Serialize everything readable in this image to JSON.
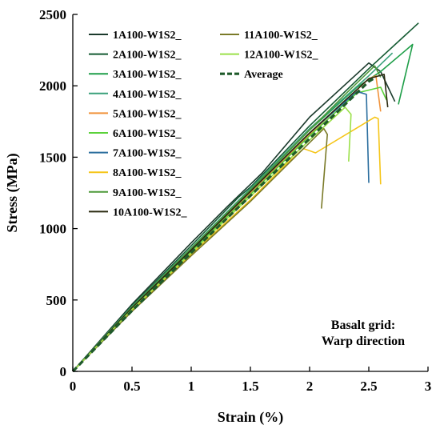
{
  "chart_data": {
    "type": "line",
    "title": "",
    "xlabel": "Strain (%)",
    "ylabel": "Stress (MPa)",
    "xlim": [
      0,
      3
    ],
    "ylim": [
      0,
      2500
    ],
    "x_ticks": [
      {
        "value": 0,
        "label": "0"
      },
      {
        "value": 0.5,
        "label": "0.5"
      },
      {
        "value": 1,
        "label": "1"
      },
      {
        "value": 1.5,
        "label": "1.5"
      },
      {
        "value": 2,
        "label": "2"
      },
      {
        "value": 2.5,
        "label": "2.5"
      },
      {
        "value": 3,
        "label": "3"
      }
    ],
    "y_ticks": [
      {
        "value": 0,
        "label": "0"
      },
      {
        "value": 500,
        "label": "500"
      },
      {
        "value": 1000,
        "label": "1000"
      },
      {
        "value": 1500,
        "label": "1500"
      },
      {
        "value": 2000,
        "label": "2000"
      },
      {
        "value": 2500,
        "label": "2500"
      }
    ],
    "grid": false,
    "legend_position": "top-left",
    "annotation": [
      "Basalt grid:",
      "Warp direction"
    ],
    "series": [
      {
        "name": "1A100-W1S2_",
        "color": "#1b3a2c",
        "dashed": false,
        "points": [
          [
            0,
            0
          ],
          [
            0.5,
            470
          ],
          [
            1,
            900
          ],
          [
            1.3,
            1150
          ],
          [
            1.5,
            1310
          ],
          [
            1.6,
            1390
          ],
          [
            2.0,
            1780
          ],
          [
            2.5,
            2160
          ],
          [
            2.6,
            2100
          ],
          [
            2.72,
            1890
          ]
        ]
      },
      {
        "name": "2A100-W1S2_",
        "color": "#145a32",
        "dashed": false,
        "points": [
          [
            0,
            0
          ],
          [
            0.5,
            460
          ],
          [
            1,
            880
          ],
          [
            1.4,
            1220
          ],
          [
            1.5,
            1290
          ],
          [
            2.0,
            1720
          ],
          [
            2.5,
            2120
          ],
          [
            2.92,
            2440
          ]
        ]
      },
      {
        "name": "3A100-W1S2_",
        "color": "#1e9e48",
        "dashed": false,
        "points": [
          [
            0,
            0
          ],
          [
            0.5,
            450
          ],
          [
            1,
            860
          ],
          [
            1.5,
            1270
          ],
          [
            2.0,
            1690
          ],
          [
            2.4,
            1990
          ],
          [
            2.6,
            2100
          ],
          [
            2.87,
            2290
          ],
          [
            2.75,
            1870
          ]
        ]
      },
      {
        "name": "4A100-W1S2_",
        "color": "#3aa07a",
        "dashed": false,
        "points": [
          [
            0,
            0
          ],
          [
            0.5,
            455
          ],
          [
            1,
            865
          ],
          [
            1.5,
            1280
          ],
          [
            2.0,
            1700
          ],
          [
            2.5,
            2070
          ],
          [
            2.7,
            2230
          ]
        ]
      },
      {
        "name": "5A100-W1S2_",
        "color": "#f0923a",
        "dashed": false,
        "points": [
          [
            0,
            0
          ],
          [
            0.5,
            445
          ],
          [
            1,
            845
          ],
          [
            1.5,
            1250
          ],
          [
            2.0,
            1660
          ],
          [
            2.5,
            2050
          ],
          [
            2.56,
            2070
          ],
          [
            2.6,
            1820
          ]
        ]
      },
      {
        "name": "6A100-W1S2_",
        "color": "#5bd23a",
        "dashed": false,
        "points": [
          [
            0,
            0
          ],
          [
            0.5,
            440
          ],
          [
            1,
            840
          ],
          [
            1.5,
            1240
          ],
          [
            2.0,
            1650
          ],
          [
            2.4,
            1950
          ],
          [
            2.6,
            1990
          ],
          [
            2.65,
            1900
          ]
        ]
      },
      {
        "name": "7A100-W1S2_",
        "color": "#2b6e9e",
        "dashed": false,
        "points": [
          [
            0,
            0
          ],
          [
            0.5,
            445
          ],
          [
            1,
            850
          ],
          [
            1.5,
            1260
          ],
          [
            2.0,
            1670
          ],
          [
            2.4,
            1960
          ],
          [
            2.48,
            1940
          ],
          [
            2.5,
            1320
          ]
        ]
      },
      {
        "name": "8A100-W1S2_",
        "color": "#f5c518",
        "dashed": false,
        "points": [
          [
            0,
            0
          ],
          [
            0.5,
            430
          ],
          [
            1,
            820
          ],
          [
            1.5,
            1200
          ],
          [
            1.8,
            1450
          ],
          [
            1.95,
            1560
          ],
          [
            2.05,
            1530
          ],
          [
            2.55,
            1780
          ],
          [
            2.58,
            1770
          ],
          [
            2.6,
            1310
          ]
        ]
      },
      {
        "name": "9A100-W1S2_",
        "color": "#4e9a3a",
        "dashed": false,
        "points": [
          [
            0,
            0
          ],
          [
            0.5,
            450
          ],
          [
            1,
            860
          ],
          [
            1.5,
            1270
          ],
          [
            2.0,
            1690
          ],
          [
            2.3,
            1940
          ],
          [
            2.55,
            2140
          ],
          [
            2.6,
            2060
          ]
        ]
      },
      {
        "name": "10A100-W1S2_",
        "color": "#2a2a10",
        "dashed": false,
        "points": [
          [
            0,
            0
          ],
          [
            0.5,
            445
          ],
          [
            1,
            850
          ],
          [
            1.5,
            1260
          ],
          [
            2.0,
            1670
          ],
          [
            2.5,
            2050
          ],
          [
            2.63,
            2080
          ],
          [
            2.66,
            1850
          ]
        ]
      },
      {
        "name": "11A100-W1S2_",
        "color": "#7a7a28",
        "dashed": false,
        "points": [
          [
            0,
            0
          ],
          [
            0.5,
            420
          ],
          [
            1,
            810
          ],
          [
            1.5,
            1190
          ],
          [
            1.9,
            1520
          ],
          [
            2.12,
            1700
          ],
          [
            2.15,
            1660
          ],
          [
            2.1,
            1140
          ]
        ]
      },
      {
        "name": "12A100-W1S2_",
        "color": "#9be04a",
        "dashed": false,
        "points": [
          [
            0,
            0
          ],
          [
            0.5,
            435
          ],
          [
            1,
            830
          ],
          [
            1.5,
            1225
          ],
          [
            2.0,
            1620
          ],
          [
            2.3,
            1850
          ],
          [
            2.35,
            1800
          ],
          [
            2.33,
            1470
          ]
        ]
      },
      {
        "name": "Average",
        "color": "#1f5a2a",
        "dashed": true,
        "points": [
          [
            0,
            0
          ],
          [
            0.5,
            425
          ],
          [
            1,
            830
          ],
          [
            1.5,
            1230
          ],
          [
            2.0,
            1630
          ],
          [
            2.5,
            2030
          ],
          [
            2.55,
            2055
          ]
        ]
      }
    ]
  }
}
